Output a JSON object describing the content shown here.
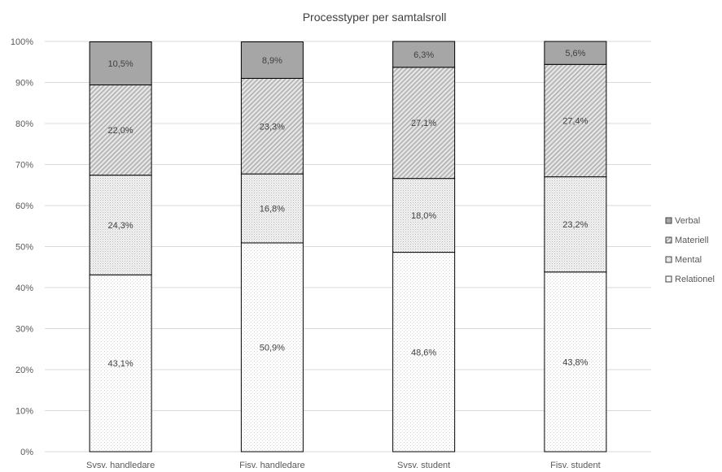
{
  "chart_data": {
    "type": "bar",
    "stacked": true,
    "percent_stacked": true,
    "title": "Processtyper per samtalsroll",
    "categories": [
      "Svsv. handledare",
      "Fisv. handledare",
      "Svsv. student",
      "Fisv. student"
    ],
    "series": [
      {
        "name": "Relationel",
        "values": [
          43.1,
          50.9,
          48.6,
          43.8
        ],
        "labels": [
          "43,1%",
          "50,9%",
          "48,6%",
          "43,8%"
        ],
        "fill": "#ffffff",
        "pattern": "dots-sparse"
      },
      {
        "name": "Mental",
        "values": [
          24.3,
          16.8,
          18.0,
          23.2
        ],
        "labels": [
          "24,3%",
          "16,8%",
          "18,0%",
          "23,2%"
        ],
        "fill": "#ebebeb",
        "pattern": "dots-dense"
      },
      {
        "name": "Materiell",
        "values": [
          22.0,
          23.3,
          27.1,
          27.4
        ],
        "labels": [
          "22,0%",
          "23,3%",
          "27,1%",
          "27,4%"
        ],
        "fill": "#d6d6d6",
        "pattern": "diagonal-hatch"
      },
      {
        "name": "Verbal",
        "values": [
          10.5,
          8.9,
          6.3,
          5.6
        ],
        "labels": [
          "10,5%",
          "8,9%",
          "6,3%",
          "5,6%"
        ],
        "fill": "#a6a6a6",
        "pattern": "solid"
      }
    ],
    "ylim": [
      0,
      100
    ],
    "yticks": [
      "0%",
      "10%",
      "20%",
      "30%",
      "40%",
      "50%",
      "60%",
      "70%",
      "80%",
      "90%",
      "100%"
    ],
    "legend": {
      "position": "right",
      "order": [
        "Verbal",
        "Materiell",
        "Mental",
        "Relationel"
      ]
    },
    "grid": true,
    "gridline_color": "#d9d9d9"
  }
}
